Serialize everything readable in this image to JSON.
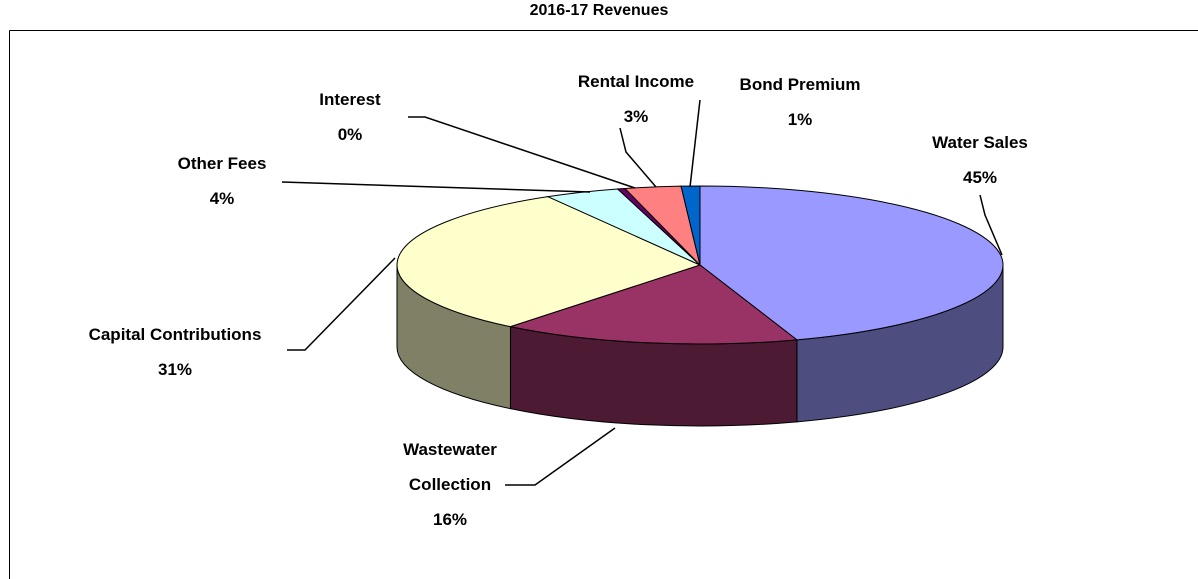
{
  "chart_data": {
    "type": "pie",
    "title": "2016-17 Revenues",
    "categories": [
      "Water Sales",
      "Wastewater Collection",
      "Capital Contributions",
      "Other Fees",
      "Interest",
      "Rental Income",
      "Bond Premium"
    ],
    "values": [
      45,
      16,
      31,
      4,
      0.4,
      3,
      1
    ],
    "value_labels": [
      "45%",
      "16%",
      "31%",
      "4%",
      "0%",
      "3%",
      "1%"
    ],
    "colors": [
      "#9999ff",
      "#993366",
      "#ffffcc",
      "#ccffff",
      "#660066",
      "#ff8080",
      "#0066cc"
    ],
    "three_d": true
  }
}
